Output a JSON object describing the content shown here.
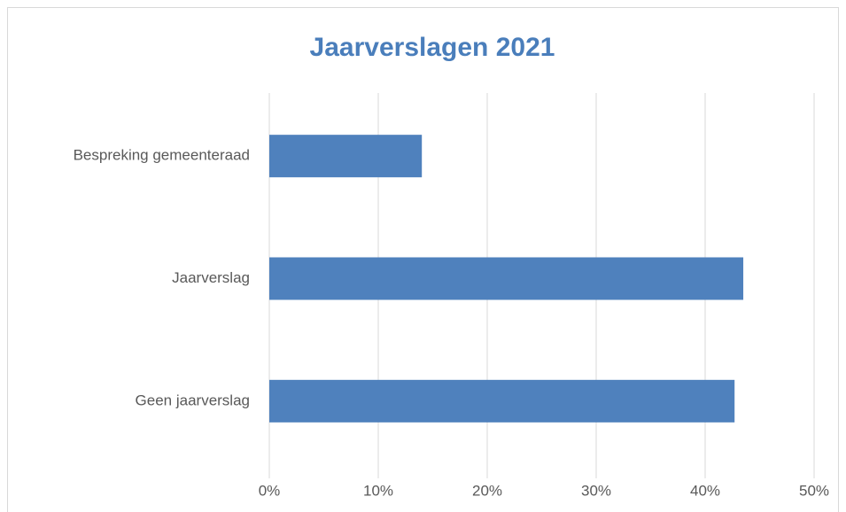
{
  "chart_data": {
    "type": "hbar",
    "title": "Jaarverslagen 2021",
    "categories": [
      "Bespreking gemeenteraad",
      "Jaarverslag",
      "Geen jaarverslag"
    ],
    "values": [
      14,
      43.5,
      42.7
    ],
    "color": "#4f81bd",
    "xlim": [
      0,
      50
    ],
    "xticks": [
      {
        "value": 0,
        "label": "0%"
      },
      {
        "value": 10,
        "label": "10%"
      },
      {
        "value": 20,
        "label": "20%"
      },
      {
        "value": 30,
        "label": "30%"
      },
      {
        "value": 40,
        "label": "40%"
      },
      {
        "value": 50,
        "label": "50%"
      }
    ],
    "grid": true
  }
}
